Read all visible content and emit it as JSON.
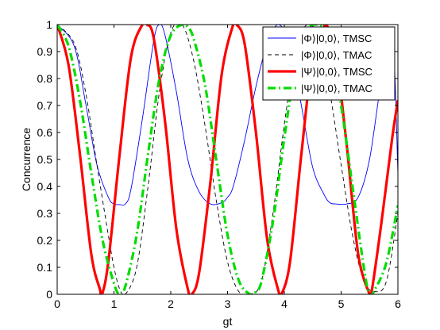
{
  "chart_data": {
    "type": "line",
    "title": "",
    "xlabel": "gt",
    "ylabel": "Concurrence",
    "xlim": [
      0,
      6
    ],
    "ylim": [
      0,
      1
    ],
    "xticks": [
      "0",
      "1",
      "2",
      "3",
      "4",
      "5",
      "6"
    ],
    "yticks": [
      "0",
      "0.1",
      "0.2",
      "0.3",
      "0.4",
      "0.5",
      "0.6",
      "0.7",
      "0.8",
      "0.9",
      "1"
    ],
    "grid": false,
    "legend_position": "top-right",
    "series": [
      {
        "name": "|Φ⟩|0,0⟩, TMSC",
        "color": "#0000ff",
        "style": "solid-thin",
        "x": [
          0,
          0.3,
          0.5,
          0.7,
          0.9,
          1.0,
          1.1,
          1.2,
          1.3,
          1.5,
          1.7,
          1.8,
          1.9,
          2.1,
          2.3,
          2.5,
          2.7,
          2.9,
          3.0,
          3.1,
          3.3,
          3.5,
          3.7,
          3.9,
          4.1,
          4.3,
          4.5,
          4.7,
          4.8,
          4.9,
          5.1,
          5.3,
          5.5,
          5.7,
          5.9,
          6.0
        ],
        "y": [
          1.0,
          0.92,
          0.71,
          0.48,
          0.36,
          0.335,
          0.333,
          0.335,
          0.39,
          0.65,
          0.94,
          1.0,
          0.96,
          0.75,
          0.5,
          0.38,
          0.335,
          0.34,
          0.36,
          0.4,
          0.57,
          0.77,
          0.93,
          1.0,
          0.92,
          0.7,
          0.47,
          0.37,
          0.34,
          0.335,
          0.335,
          0.36,
          0.5,
          0.78,
          0.97,
          0.45
        ]
      },
      {
        "name": "|Φ⟩|0,0⟩, TMAC",
        "color": "#000000",
        "style": "dashed-thin",
        "x": [
          0,
          0.3,
          0.5,
          0.7,
          0.9,
          1.0,
          1.1,
          1.2,
          1.4,
          1.6,
          1.8,
          2.0,
          2.2,
          2.4,
          2.6,
          2.8,
          3.0,
          3.2,
          3.4,
          3.6,
          3.8,
          4.0,
          4.2,
          4.4,
          4.6,
          4.8,
          5.0,
          5.2,
          5.4,
          5.6,
          5.8,
          6.0
        ],
        "y": [
          1.0,
          0.93,
          0.75,
          0.48,
          0.22,
          0.1,
          0.02,
          0.0,
          0.1,
          0.4,
          0.75,
          0.97,
          1.0,
          0.87,
          0.63,
          0.35,
          0.12,
          0.01,
          0.0,
          0.05,
          0.3,
          0.63,
          0.9,
          1.0,
          0.95,
          0.75,
          0.48,
          0.22,
          0.05,
          0.01,
          0.05,
          0.3
        ]
      },
      {
        "name": "|Ψ⟩|0,0⟩, TMSC",
        "color": "#ff0000",
        "style": "solid-thick",
        "x": [
          0,
          0.2,
          0.4,
          0.6,
          0.75,
          0.79,
          0.9,
          1.1,
          1.3,
          1.5,
          1.58,
          1.7,
          1.9,
          2.1,
          2.3,
          2.37,
          2.5,
          2.7,
          2.9,
          3.1,
          3.16,
          3.3,
          3.5,
          3.7,
          3.9,
          3.95,
          4.1,
          4.3,
          4.5,
          4.7,
          4.74,
          4.9,
          5.1,
          5.3,
          5.5,
          5.53,
          5.7,
          5.9,
          6.0
        ],
        "y": [
          1.0,
          0.85,
          0.52,
          0.15,
          0.02,
          0.0,
          0.12,
          0.52,
          0.88,
          1.0,
          1.0,
          0.95,
          0.64,
          0.24,
          0.02,
          0.0,
          0.08,
          0.42,
          0.82,
          1.0,
          1.0,
          0.93,
          0.6,
          0.2,
          0.01,
          0.0,
          0.12,
          0.52,
          0.88,
          0.99,
          1.0,
          0.9,
          0.55,
          0.15,
          0.0,
          0.0,
          0.25,
          0.58,
          0.72
        ]
      },
      {
        "name": "|Ψ⟩|0,0⟩, TMAC",
        "color": "#00dd00",
        "style": "dashdot-thick",
        "x": [
          0,
          0.2,
          0.4,
          0.6,
          0.8,
          1.0,
          1.1,
          1.2,
          1.4,
          1.6,
          1.8,
          2.0,
          2.2,
          2.3,
          2.4,
          2.6,
          2.8,
          3.0,
          3.2,
          3.4,
          3.5,
          3.6,
          3.8,
          4.0,
          4.2,
          4.4,
          4.6,
          4.7,
          4.8,
          5.0,
          5.2,
          5.4,
          5.5,
          5.6,
          5.8,
          6.0
        ],
        "y": [
          1.0,
          0.92,
          0.72,
          0.45,
          0.2,
          0.04,
          0.0,
          0.03,
          0.22,
          0.52,
          0.8,
          0.96,
          1.0,
          0.99,
          0.95,
          0.78,
          0.5,
          0.22,
          0.05,
          0.0,
          0.01,
          0.05,
          0.27,
          0.58,
          0.85,
          0.98,
          1.0,
          0.98,
          0.92,
          0.7,
          0.4,
          0.1,
          0.0,
          0.02,
          0.12,
          0.33
        ]
      }
    ]
  }
}
